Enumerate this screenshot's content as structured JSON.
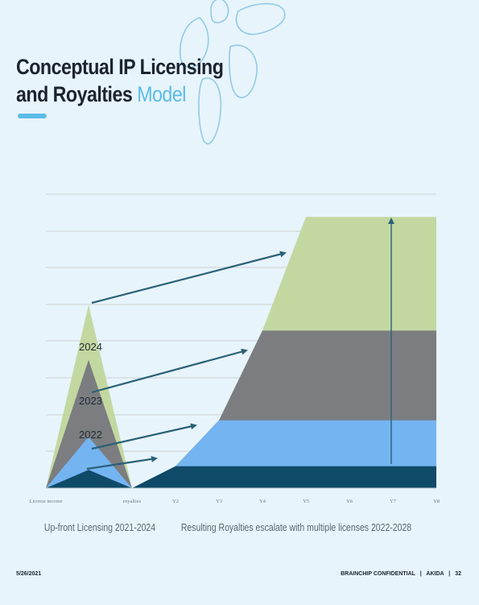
{
  "slide": {
    "title_line1": "Conceptual IP Licensing",
    "title_line2_prefix": "and Royalties ",
    "title_line2_accent": "Model",
    "footer_date": "5/26/2021",
    "footer_confidential": "BRAINCHIP CONFIDENTIAL",
    "footer_brand": "AKIDA",
    "footer_page": "32",
    "footer_separator": "|"
  },
  "colors": {
    "background": "#e7f4fb",
    "accent": "#5bbce9",
    "green": "#c3d8a1",
    "gray": "#7b7d80",
    "blue": "#74b4f1",
    "navy": "#0f4a68",
    "arrow": "#2a6177",
    "grid": "#d3d7da"
  },
  "chart_data": {
    "type": "area",
    "title": "",
    "x_tick_labels": [
      "License income",
      "royalties",
      "Y2",
      "Y3",
      "Y4",
      "Y5",
      "Y6",
      "Y7",
      "Y8"
    ],
    "category_labels": [
      "Up-front Licensing 2021-2024",
      "Resulting Royalties escalate with multiple licenses 2022-2028"
    ],
    "grid": true,
    "licensing": {
      "layer_labels": [
        "2022",
        "2023",
        "2024"
      ],
      "layers": [
        {
          "color": "navy",
          "peak": 0.5
        },
        {
          "color": "blue",
          "peak": 1.4
        },
        {
          "color": "gray",
          "peak": 3.5
        },
        {
          "color": "green",
          "peak": 5.0
        }
      ]
    },
    "royalties": {
      "x": [
        "royalties",
        "Y2",
        "Y3",
        "Y4",
        "Y5",
        "Y6",
        "Y7",
        "Y8"
      ],
      "series": [
        {
          "color": "navy",
          "values": [
            0,
            0.6,
            0.6,
            0.6,
            0.6,
            0.6,
            0.6,
            0.6
          ]
        },
        {
          "color": "blue",
          "values": [
            0,
            0.6,
            1.85,
            1.85,
            1.85,
            1.85,
            1.85,
            1.85
          ]
        },
        {
          "color": "gray",
          "values": [
            0,
            0.6,
            1.85,
            4.3,
            4.3,
            4.3,
            4.3,
            4.3
          ]
        },
        {
          "color": "green",
          "values": [
            0,
            0.6,
            1.85,
            4.3,
            7.4,
            7.4,
            7.4,
            7.4
          ]
        }
      ]
    }
  }
}
